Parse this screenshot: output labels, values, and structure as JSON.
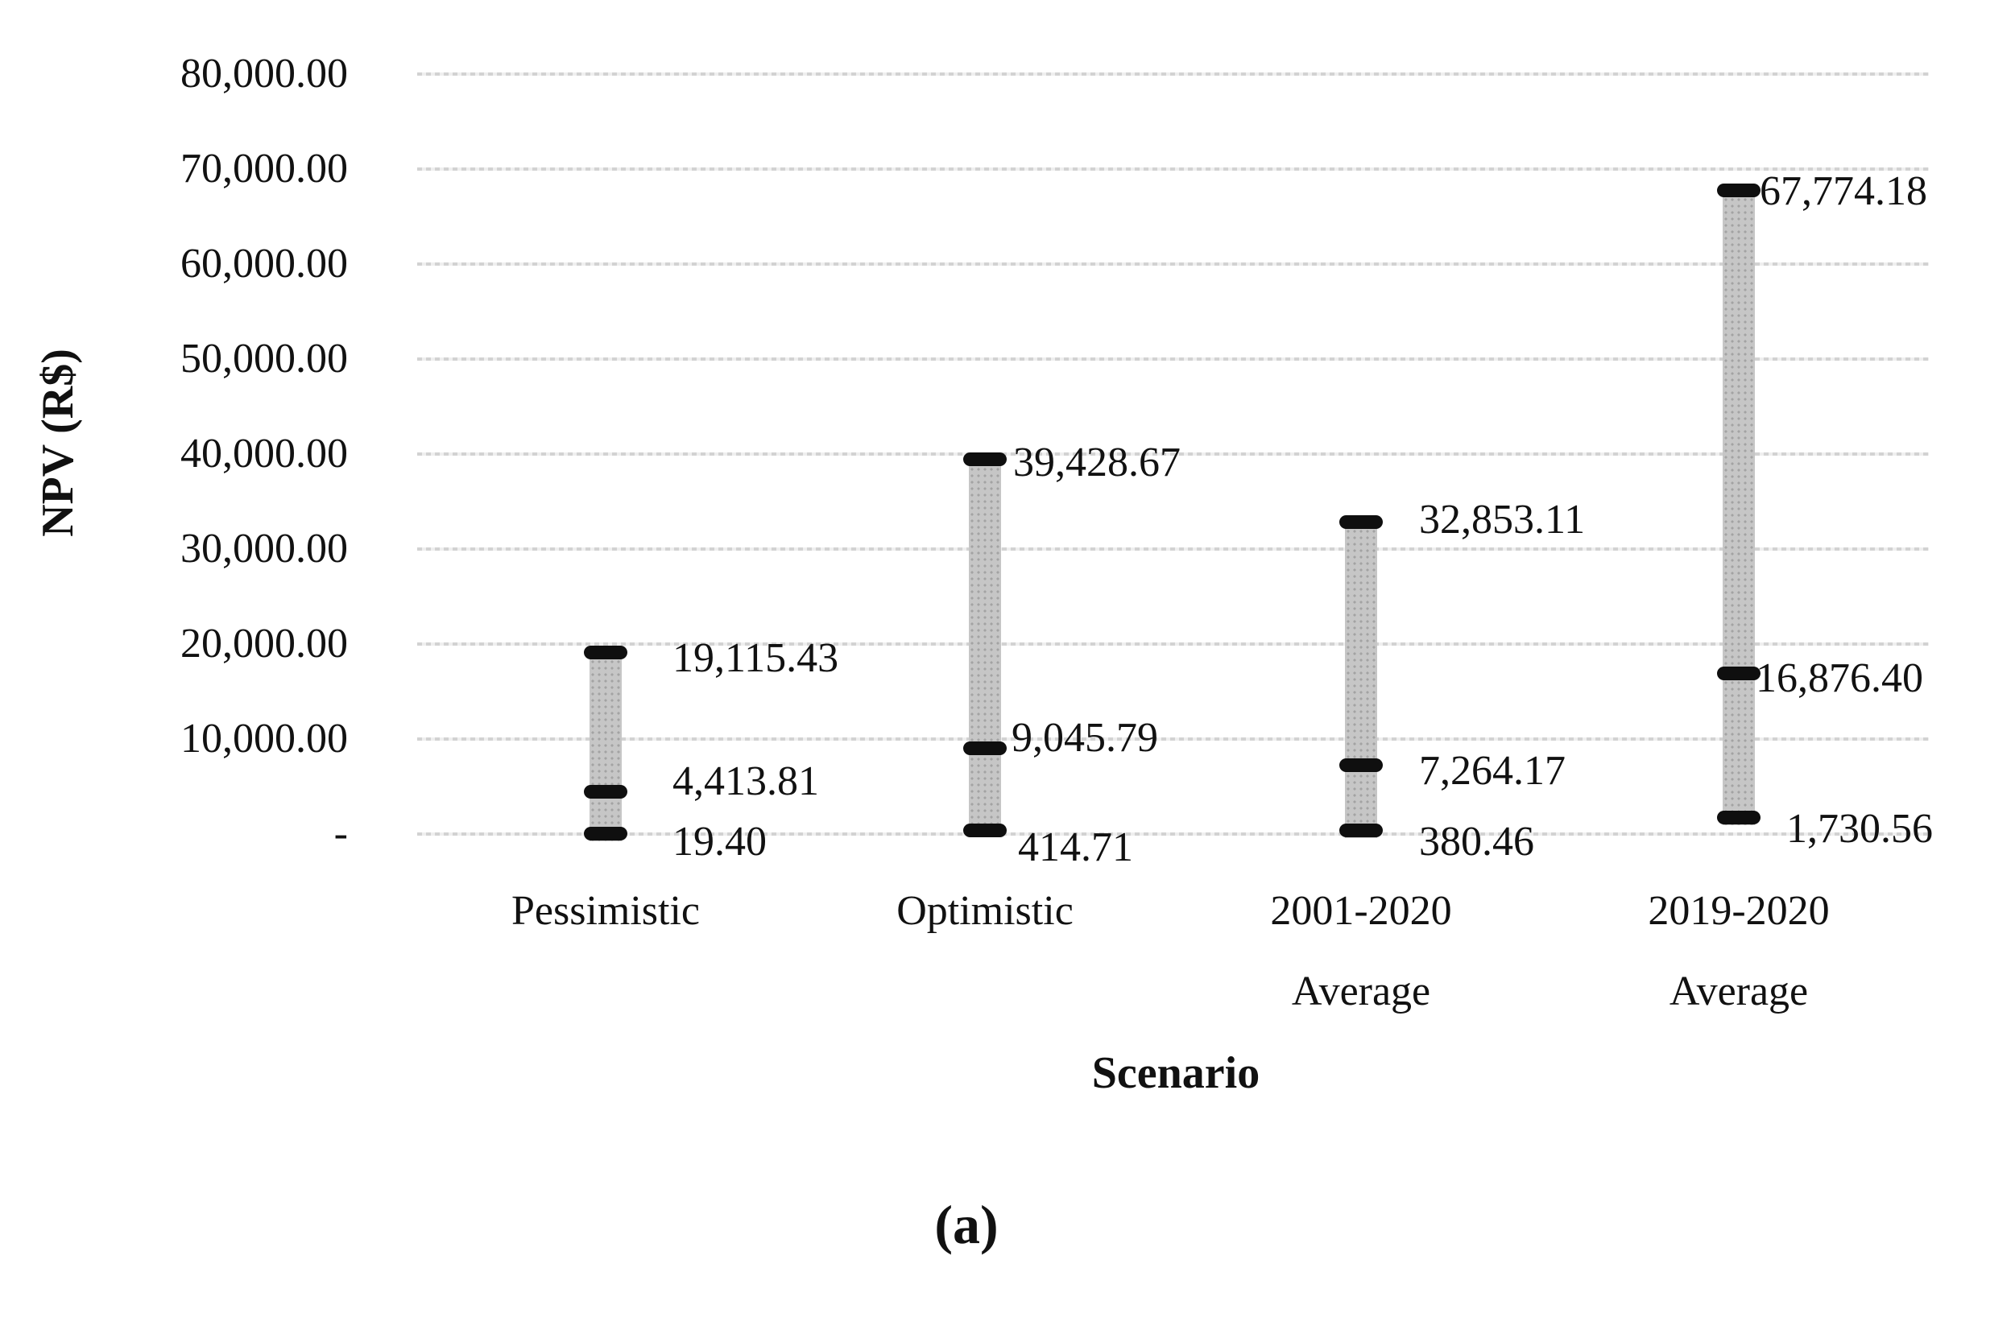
{
  "figure": {
    "panel_label": "(a)",
    "x_axis_title": "Scenario",
    "y_axis_title": "NPV (R$)"
  },
  "y_axis": {
    "tick_labels": [
      "80,000.00",
      "70,000.00",
      "60,000.00",
      "50,000.00",
      "40,000.00",
      "30,000.00",
      "20,000.00",
      "10,000.00",
      "-"
    ],
    "tick_values": [
      80000,
      70000,
      60000,
      50000,
      40000,
      30000,
      20000,
      10000,
      0
    ]
  },
  "chart_data": {
    "type": "bar",
    "subtype": "floating high-low-close range bars",
    "title": "",
    "xlabel": "Scenario",
    "ylabel": "NPV (R$)",
    "ylim": [
      0,
      80000
    ],
    "grid": true,
    "legend": false,
    "categories": [
      "Pessimistic",
      "Optimistic",
      "2001-2020 Average",
      "2019-2020 Average"
    ],
    "category_label_lines": [
      [
        "Pessimistic"
      ],
      [
        "Optimistic"
      ],
      [
        "2001-2020",
        "Average"
      ],
      [
        "2019-2020",
        "Average"
      ]
    ],
    "series": [
      {
        "name": "high",
        "values": [
          19115.43,
          39428.67,
          32853.11,
          67774.18
        ]
      },
      {
        "name": "close",
        "values": [
          4413.81,
          9045.79,
          7264.17,
          16876.4
        ]
      },
      {
        "name": "low",
        "values": [
          19.4,
          414.71,
          380.46,
          1730.56
        ]
      }
    ],
    "point_labels": [
      {
        "high": "19,115.43",
        "close": "4,413.81",
        "low": "19.40"
      },
      {
        "high": "39,428.67",
        "close": "9,045.79",
        "low": "414.71"
      },
      {
        "high": "32,853.11",
        "close": "7,264.17",
        "low": "380.46"
      },
      {
        "high": "67,774.18",
        "close": "16,876.40",
        "low": "1,730.56"
      }
    ],
    "colors": {
      "bar_fill": "#c6c6c6",
      "marker": "#0f0f0f",
      "gridline": "#d9d9d9",
      "text": "#111111",
      "background": "#ffffff"
    }
  }
}
